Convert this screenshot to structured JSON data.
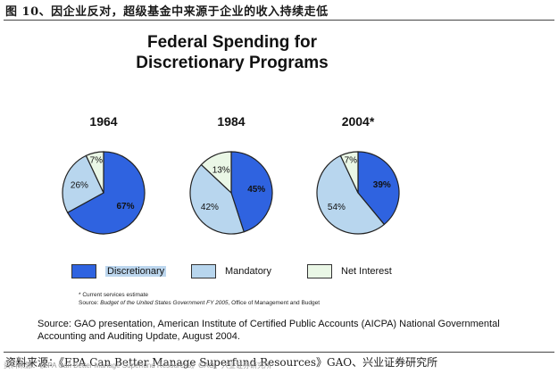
{
  "figure_caption": "图 10、因企业反对，超级基金中来源于企业的收入持续走低",
  "chart_data": {
    "type": "pie",
    "title_line1": "Federal Spending for",
    "title_line2": "Discretionary Programs",
    "pies": [
      {
        "year": "1964",
        "slices": [
          {
            "category": "Discretionary",
            "value": 67,
            "label": "67%"
          },
          {
            "category": "Mandatory",
            "value": 26,
            "label": "26%"
          },
          {
            "category": "Net Interest",
            "value": 7,
            "label": "7%"
          }
        ]
      },
      {
        "year": "1984",
        "slices": [
          {
            "category": "Discretionary",
            "value": 45,
            "label": "45%"
          },
          {
            "category": "Mandatory",
            "value": 42,
            "label": "42%"
          },
          {
            "category": "Net Interest",
            "value": 13,
            "label": "13%"
          }
        ]
      },
      {
        "year": "2004*",
        "slices": [
          {
            "category": "Discretionary",
            "value": 39,
            "label": "39%"
          },
          {
            "category": "Mandatory",
            "value": 54,
            "label": "54%"
          },
          {
            "category": "Net Interest",
            "value": 7,
            "label": "7%"
          }
        ]
      }
    ],
    "legend": [
      {
        "name": "Discretionary",
        "color": "#2f63e0"
      },
      {
        "name": "Mandatory",
        "color": "#b8d6ee"
      },
      {
        "name": "Net Interest",
        "color": "#eaf7e6"
      }
    ]
  },
  "footnotes": {
    "note1": "* Current services estimate",
    "note2_prefix": "Source: ",
    "note2_italic": "Budget of the United States Government FY 2005",
    "note2_suffix": ", Office of Management and Budget"
  },
  "source_text": "Source: GAO presentation, American Institute of Certified Public Accounts (AICPA) National Governmental Accounting and Auditing Update, August 2004.",
  "bottom_source": "资料来源：《EPA Can Better Manage Superfund Resources》GAO、兴业证券研究所"
}
